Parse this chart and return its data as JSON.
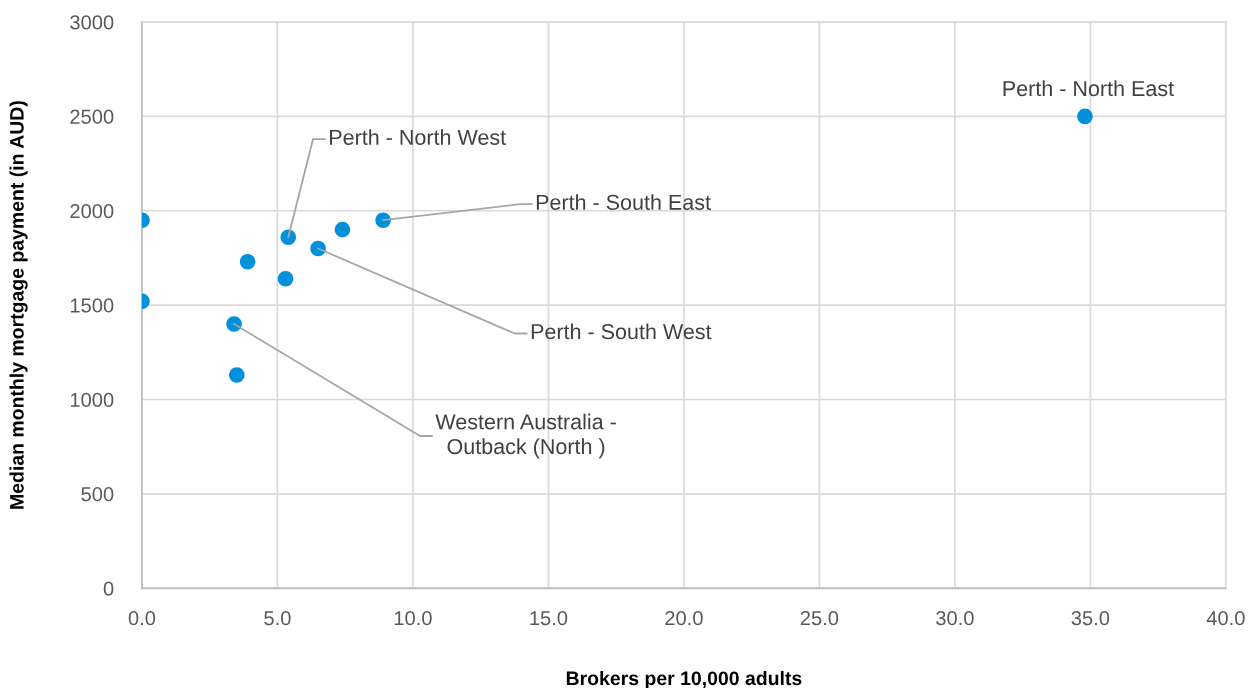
{
  "chart_data": {
    "type": "scatter",
    "xlabel": "Brokers per 10,000 adults",
    "ylabel": "Median monthly mortgage payment (in AUD)",
    "x": [
      0.0,
      0.0,
      3.9,
      3.4,
      3.5,
      5.4,
      5.3,
      6.5,
      7.4,
      8.9,
      34.8
    ],
    "values": [
      1950,
      1520,
      1730,
      1400,
      1130,
      1860,
      1640,
      1800,
      1900,
      1950,
      2500
    ],
    "color": "#0091da",
    "marker": "circle",
    "xlim": [
      0,
      40
    ],
    "xticks": [
      {
        "value": 0,
        "label": "0.0"
      },
      {
        "value": 5,
        "label": "5.0"
      },
      {
        "value": 10,
        "label": "10.0"
      },
      {
        "value": 15,
        "label": "15.0"
      },
      {
        "value": 20,
        "label": "20.0"
      },
      {
        "value": 25,
        "label": "25.0"
      },
      {
        "value": 30,
        "label": "30.0"
      },
      {
        "value": 35,
        "label": "35.0"
      },
      {
        "value": 40,
        "label": "40.0"
      }
    ],
    "ylim": [
      0,
      3000
    ],
    "yticks": [
      0,
      500,
      1000,
      1500,
      2000,
      2500,
      3000
    ],
    "grid": true,
    "annotations": [
      {
        "text": "Perth - North West",
        "x": 5.4,
        "y": 1860
      },
      {
        "text": "Perth - South East",
        "x": 8.9,
        "y": 1950
      },
      {
        "text": "Perth - South West",
        "x": 6.5,
        "y": 1800
      },
      {
        "text": "Western Australia -\nOutback (North )",
        "x": 3.4,
        "y": 1400
      },
      {
        "text": "Perth - North East",
        "x": 34.8,
        "y": 2500
      }
    ]
  }
}
